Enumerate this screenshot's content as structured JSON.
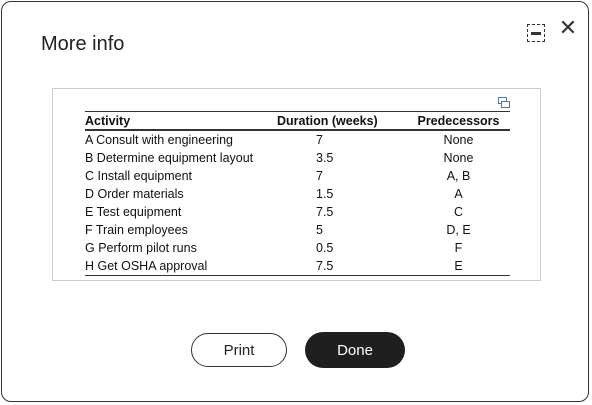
{
  "dialog": {
    "title": "More info",
    "minimize_icon": "minimize-icon",
    "close_icon": "close-icon",
    "close_glyph": "✕"
  },
  "table": {
    "headers": {
      "activity": "Activity",
      "duration": "Duration (weeks)",
      "predecessors": "Predecessors"
    },
    "rows": [
      {
        "activity": "A Consult with engineering",
        "duration": "7",
        "predecessors": "None"
      },
      {
        "activity": "B Determine equipment layout",
        "duration": "3.5",
        "predecessors": "None"
      },
      {
        "activity": "C Install equipment",
        "duration": "7",
        "predecessors": "A, B"
      },
      {
        "activity": "D Order materials",
        "duration": "1.5",
        "predecessors": "A"
      },
      {
        "activity": "E Test equipment",
        "duration": "7.5",
        "predecessors": "C"
      },
      {
        "activity": "F Train employees",
        "duration": "5",
        "predecessors": "D, E"
      },
      {
        "activity": "G Perform pilot runs",
        "duration": "0.5",
        "predecessors": "F"
      },
      {
        "activity": "H Get OSHA approval",
        "duration": "7.5",
        "predecessors": "E"
      }
    ]
  },
  "buttons": {
    "print": "Print",
    "done": "Done"
  },
  "colors": {
    "done_bg": "#1f1f1f",
    "expand_icon": "#5577aa"
  }
}
